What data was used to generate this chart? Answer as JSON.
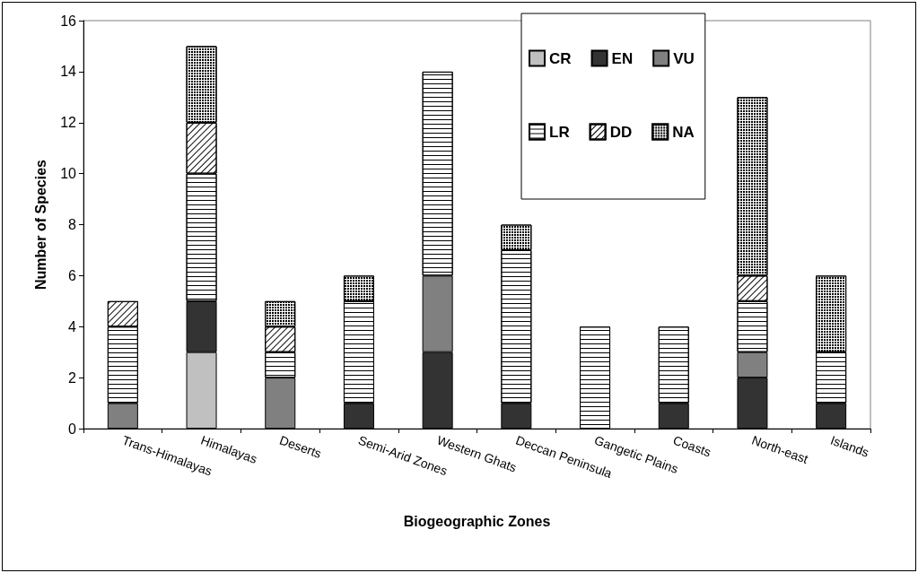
{
  "chart_data": {
    "type": "bar",
    "stacked": true,
    "xlabel": "Biogeographic Zones",
    "ylabel": "Number of Species",
    "categories": [
      "Trans-Himalayas",
      "Himalayas",
      "Deserts",
      "Semi-Arid Zones",
      "Western Ghats",
      "Deccan Peninsula",
      "Gangetic Plains",
      "Coasts",
      "North-east",
      "Islands"
    ],
    "series": [
      {
        "name": "CR",
        "color": "#c0c0c0",
        "values": [
          null,
          3,
          null,
          null,
          null,
          null,
          null,
          null,
          null,
          null
        ]
      },
      {
        "name": "EN",
        "color": "#333333",
        "values": [
          null,
          2,
          null,
          1,
          3,
          1,
          null,
          1,
          2,
          1
        ]
      },
      {
        "name": "VU",
        "color": "#808080",
        "values": [
          1,
          null,
          2,
          null,
          3,
          null,
          null,
          null,
          1,
          null
        ]
      },
      {
        "name": "LR",
        "color": "#ffffff",
        "values": [
          3,
          5,
          1,
          4,
          8,
          6,
          4,
          3,
          2,
          2
        ]
      },
      {
        "name": "DD",
        "color": "#ffffff",
        "values": [
          1,
          2,
          1,
          null,
          null,
          null,
          null,
          null,
          1,
          null
        ]
      },
      {
        "name": "NA",
        "color": "#ffffff",
        "values": [
          null,
          3,
          1,
          1,
          null,
          1,
          null,
          null,
          7,
          3
        ]
      }
    ],
    "ylim": [
      0,
      16
    ],
    "yticks": [
      0,
      2,
      4,
      6,
      8,
      10,
      12,
      14,
      16
    ],
    "grid": false,
    "legend": "top right"
  }
}
